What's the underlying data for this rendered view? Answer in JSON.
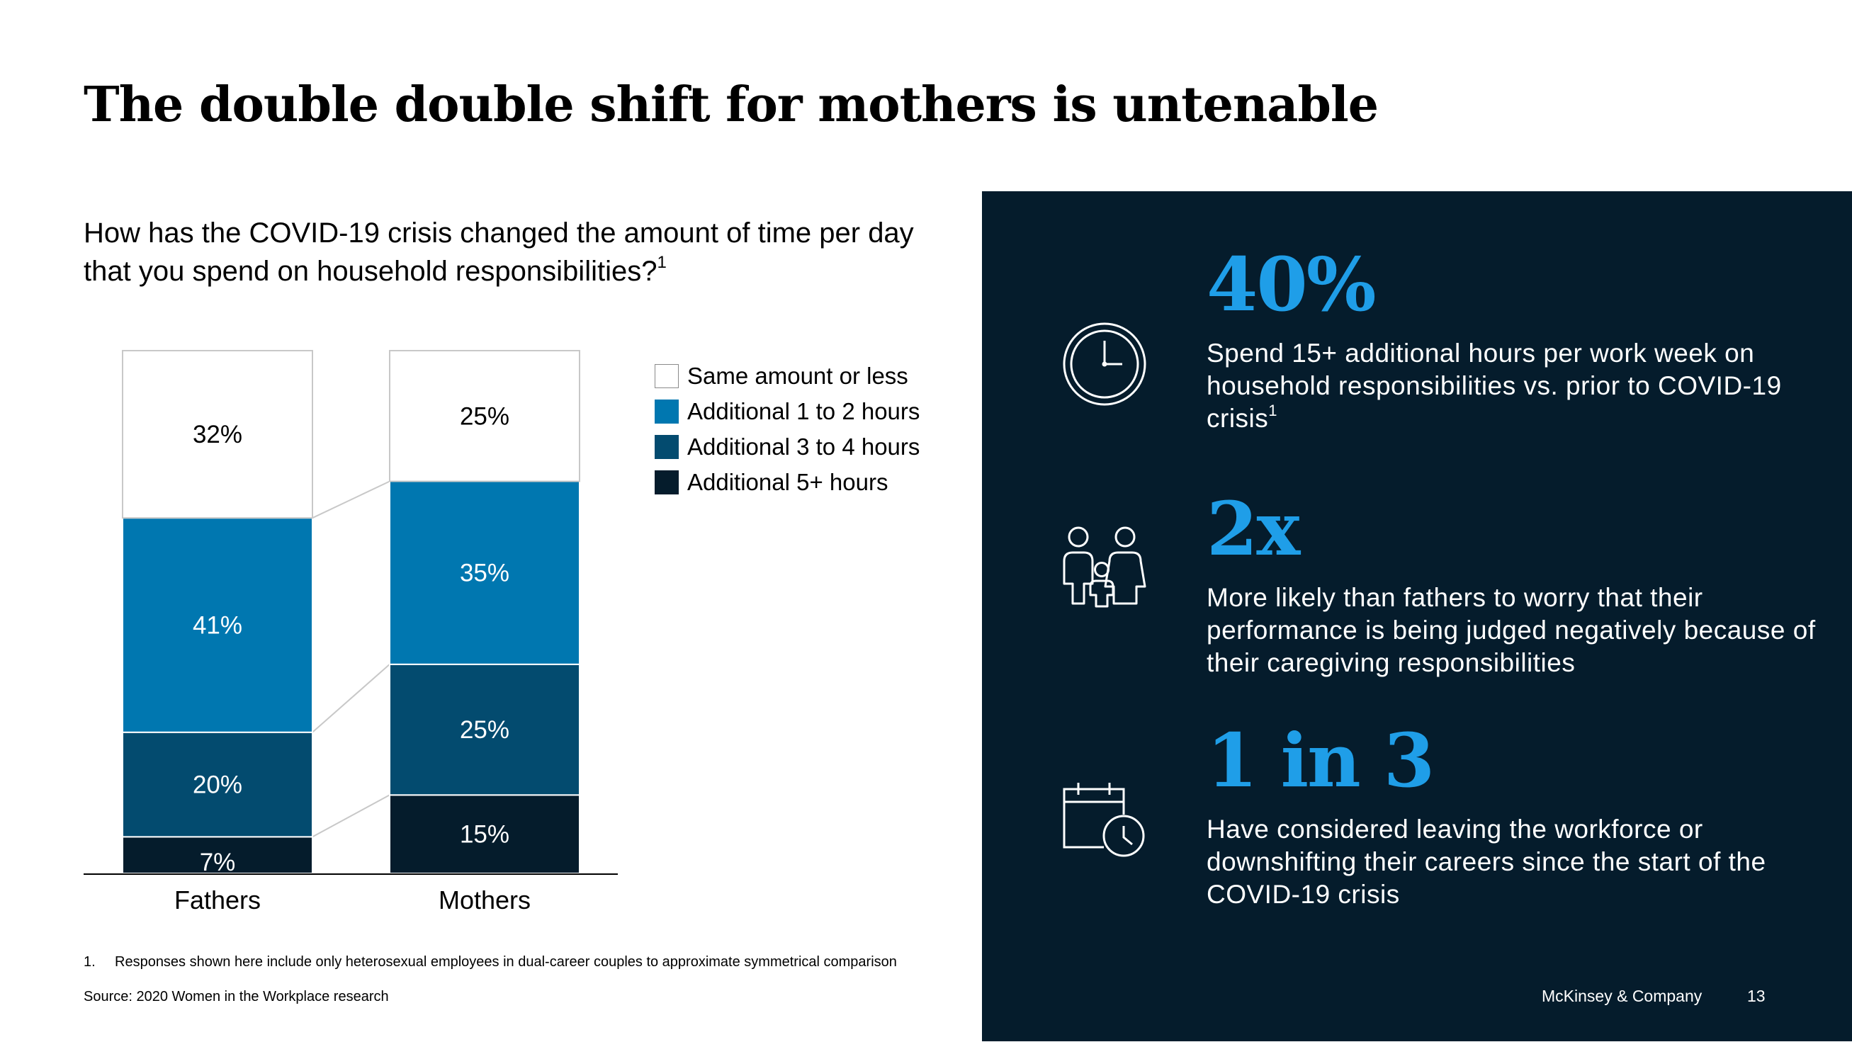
{
  "title": "The double double shift for mothers is untenable",
  "question": {
    "text": "How has the COVID-19 crisis changed the amount of time per day that you spend on household responsibilities?",
    "footnote_ref": "1"
  },
  "legend": [
    {
      "label": "Same amount or less",
      "color": "#ffffff"
    },
    {
      "label": "Additional 1 to 2 hours",
      "color": "#0077b0"
    },
    {
      "label": "Additional 3 to 4 hours",
      "color": "#034b6f"
    },
    {
      "label": "Additional 5+ hours",
      "color": "#051c2c"
    }
  ],
  "chart_data": {
    "type": "bar",
    "stacked": true,
    "categories": [
      "Fathers",
      "Mothers"
    ],
    "series": [
      {
        "name": "Additional 5+ hours",
        "values": [
          7,
          15
        ],
        "labels": [
          "7%",
          "15%"
        ],
        "color": "#051c2c"
      },
      {
        "name": "Additional 3 to 4 hours",
        "values": [
          20,
          25
        ],
        "labels": [
          "20%",
          "25%"
        ],
        "color": "#034b6f"
      },
      {
        "name": "Additional 1 to 2 hours",
        "values": [
          41,
          35
        ],
        "labels": [
          "41%",
          "35%"
        ],
        "color": "#0077b0"
      },
      {
        "name": "Same amount or less",
        "values": [
          32,
          25
        ],
        "labels": [
          "32%",
          "25%"
        ],
        "color": "#ffffff"
      }
    ],
    "ylim": [
      0,
      100
    ],
    "legend_position": "right",
    "grid": false
  },
  "footnote": {
    "number": "1.",
    "text": "Responses shown here include only heterosexual employees in dual-career couples to approximate symmetrical comparison"
  },
  "source": "Source: 2020 Women in the Workplace research",
  "stats": [
    {
      "value": "40%",
      "description": "Spend 15+ additional hours per work week on household responsibilities vs. prior to COVID-19 crisis",
      "footnote_ref": "1",
      "icon": "clock-icon"
    },
    {
      "value": "2x",
      "description": "More likely than fathers to worry that their performance is being judged negatively because of their caregiving responsibilities",
      "footnote_ref": "",
      "icon": "family-icon"
    },
    {
      "value": "1 in 3",
      "description": "Have considered leaving the workforce or downshifting their careers since the start of the COVID-19 crisis",
      "footnote_ref": "",
      "icon": "calendar-clock-icon"
    }
  ],
  "brand": "McKinsey & Company",
  "page_number": "13"
}
